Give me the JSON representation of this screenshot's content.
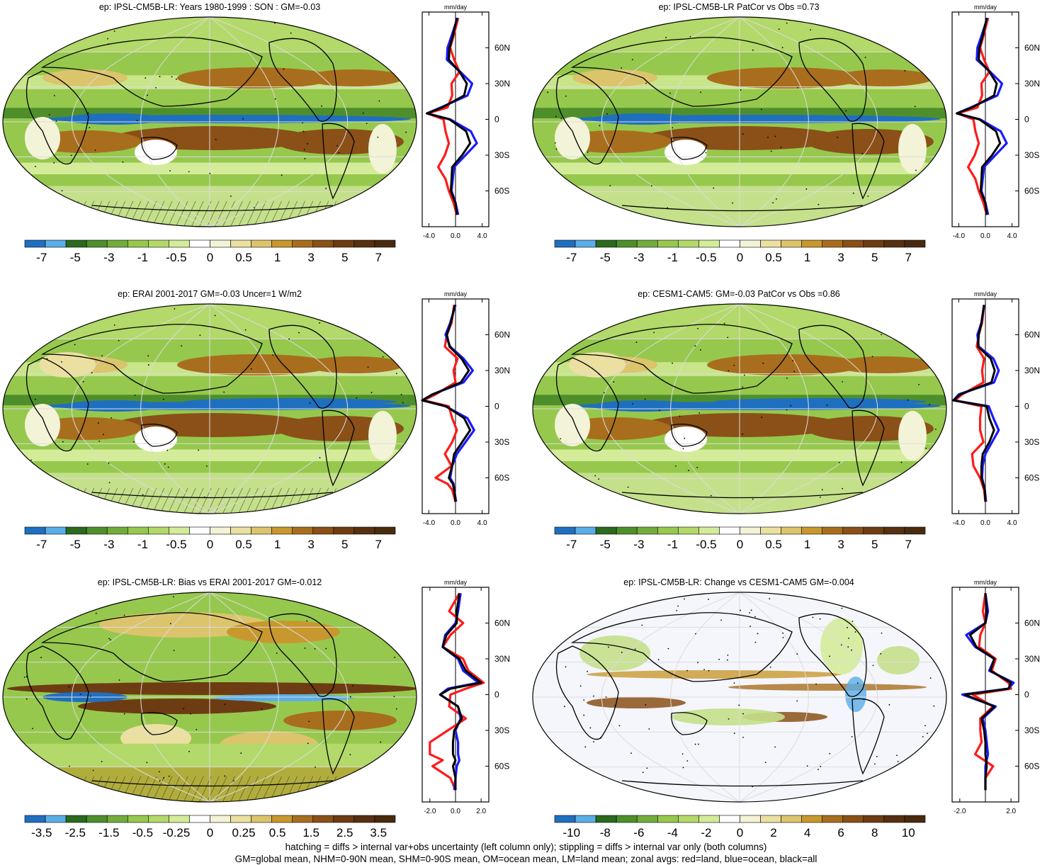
{
  "panels": [
    {
      "title": "ep: IPSL-CM5B-LR: Years 1980-1999 : SON : GM=-0.03",
      "style": "clim",
      "hatch": true,
      "cb": "clim",
      "zonal_ticks": [
        "-4.0",
        "0.0",
        "4.0"
      ]
    },
    {
      "title": "ep: IPSL-CM5B-LR PatCor vs Obs =0.73",
      "style": "clim",
      "hatch": false,
      "cb": "clim",
      "zonal_ticks": [
        "-4.0",
        "0.0",
        "4.0"
      ]
    },
    {
      "title": "ep: ERAI 2001-2017 GM=-0.03 Uncer=1 W/m2",
      "style": "clim2",
      "hatch": true,
      "cb": "clim",
      "zonal_ticks": [
        "-4.0",
        "0.0",
        "4.0"
      ]
    },
    {
      "title": "ep: CESM1-CAM5: GM=-0.03 PatCor vs Obs =0.86",
      "style": "clim2",
      "hatch": false,
      "cb": "clim",
      "zonal_ticks": [
        "-4.0",
        "0.0",
        "4.0"
      ]
    },
    {
      "title": "ep: IPSL-CM5B-LR: Bias vs ERAI 2001-2017  GM=-0.012",
      "style": "bias",
      "hatch": true,
      "cb": "bias",
      "zonal_ticks": [
        "-2.0",
        "0.0",
        "2.0"
      ]
    },
    {
      "title": "ep: IPSL-CM5B-LR: Change vs CESM1-CAM5 GM=-0.004",
      "style": "change",
      "hatch": false,
      "cb": "change",
      "zonal_ticks": [
        "-2.0",
        "2.0"
      ]
    }
  ],
  "zonal_unit": "mm/day",
  "lat_labels": [
    "60N",
    "30N",
    "0",
    "30S",
    "60S"
  ],
  "colorbars": {
    "clim": {
      "colors": [
        "#1f6fc0",
        "#5aaee8",
        "#2a6a1e",
        "#4e8f2c",
        "#72ad3c",
        "#96c84e",
        "#b3d96a",
        "#d4ec9a",
        "#ffffff",
        "#f3f3d8",
        "#ebe0a0",
        "#dcc46c",
        "#c8982e",
        "#a86e1e",
        "#8a5018",
        "#6e3c12",
        "#563010",
        "#4a2a0e"
      ],
      "labels": [
        "-7",
        "-5",
        "-3",
        "-1",
        "-0.5",
        "0",
        "0.5",
        "1",
        "3",
        "5",
        "7"
      ]
    },
    "bias": {
      "colors": [
        "#1f6fc0",
        "#5aaee8",
        "#2a6a1e",
        "#4e8f2c",
        "#72ad3c",
        "#96c84e",
        "#b3d96a",
        "#d4ec9a",
        "#ffffff",
        "#f3f3d8",
        "#ebe0a0",
        "#dcc46c",
        "#c8982e",
        "#a86e1e",
        "#8a5018",
        "#6e3c12",
        "#563010",
        "#4a2a0e"
      ],
      "labels": [
        "-3.5",
        "-2.5",
        "-1.5",
        "-0.5",
        "-0.25",
        "0",
        "0.25",
        "0.5",
        "1.5",
        "2.5",
        "3.5"
      ]
    },
    "change": {
      "colors": [
        "#1f6fc0",
        "#5aaee8",
        "#2a6a1e",
        "#4e8f2c",
        "#72ad3c",
        "#96c84e",
        "#b3d96a",
        "#d4ec9a",
        "#ffffff",
        "#f3f3d8",
        "#ebe0a0",
        "#dcc46c",
        "#c8982e",
        "#a86e1e",
        "#8a5018",
        "#6e3c12",
        "#563010",
        "#4a2a0e"
      ],
      "labels": [
        "-10",
        "-8",
        "-6",
        "-4",
        "-2",
        "0",
        "2",
        "4",
        "6",
        "8",
        "10"
      ]
    }
  },
  "legend_colors": {
    "land": "#ff1a1a",
    "ocean": "#1a1aff",
    "all": "#000000"
  },
  "footer": {
    "line1": "hatching = diffs > internal var+obs uncertainty (left column only); stippling = diffs > internal var only (both columns)",
    "line2": "GM=global mean, NHM=0-90N mean, SHM=0-90S mean, OM=ocean mean, LM=land mean; zonal avgs: red=land, blue=ocean, black=all"
  },
  "chart_data": [
    {
      "type": "heatmap",
      "title": "ep: IPSL-CM5B-LR: Years 1980-1999 : SON : GM=-0.03",
      "colorbar_labels": [
        "-7",
        "-5",
        "-3",
        "-1",
        "-0.5",
        "0",
        "0.5",
        "1",
        "3",
        "5",
        "7"
      ],
      "zonal_mean": {
        "unit": "mm/day",
        "xlim": [
          -5,
          5
        ],
        "lat": [
          85,
          70,
          60,
          50,
          40,
          30,
          20,
          10,
          5,
          0,
          -10,
          -20,
          -30,
          -40,
          -50,
          -60,
          -70,
          -80
        ],
        "series": [
          {
            "name": "land",
            "values": [
              0.4,
              -0.3,
              -0.8,
              -0.2,
              0.6,
              -0.6,
              -0.5,
              -1.2,
              -4.2,
              -1.8,
              -1.5,
              -1.0,
              -1.6,
              -2.6,
              -1.5,
              -1.0,
              -0.3,
              0.2
            ]
          },
          {
            "name": "ocean",
            "values": [
              0.3,
              -0.6,
              -1.2,
              -1.3,
              0.7,
              2.5,
              1.8,
              -2.2,
              -4.3,
              -0.8,
              2.3,
              3.2,
              1.5,
              -0.2,
              -0.4,
              -0.6,
              0.0,
              0.4
            ]
          },
          {
            "name": "all",
            "values": [
              0.2,
              -0.4,
              -0.9,
              -1.0,
              0.6,
              1.7,
              1.3,
              -2.0,
              -4.3,
              -0.9,
              1.6,
              2.2,
              1.0,
              -0.5,
              -0.6,
              -0.7,
              0.0,
              0.2
            ]
          }
        ]
      }
    },
    {
      "type": "heatmap",
      "title": "ep: IPSL-CM5B-LR PatCor vs Obs =0.73",
      "colorbar_labels": [
        "-7",
        "-5",
        "-3",
        "-1",
        "-0.5",
        "0",
        "0.5",
        "1",
        "3",
        "5",
        "7"
      ],
      "zonal_mean": {
        "unit": "mm/day",
        "xlim": [
          -5,
          5
        ],
        "lat": [
          85,
          70,
          60,
          50,
          40,
          30,
          20,
          10,
          5,
          0,
          -10,
          -20,
          -30,
          -40,
          -50,
          -60,
          -70,
          -80
        ],
        "series": [
          {
            "name": "land",
            "values": [
              0.4,
              -0.3,
              -0.8,
              -0.2,
              0.6,
              -0.6,
              -0.5,
              -1.2,
              -4.2,
              -1.8,
              -1.5,
              -1.0,
              -1.6,
              -2.6,
              -1.5,
              -1.0,
              -0.3,
              0.2
            ]
          },
          {
            "name": "ocean",
            "values": [
              0.3,
              -0.6,
              -1.2,
              -1.3,
              0.7,
              2.5,
              1.8,
              -2.2,
              -4.3,
              -0.8,
              2.3,
              3.2,
              1.5,
              -0.2,
              -0.4,
              -0.6,
              0.0,
              0.4
            ]
          },
          {
            "name": "all",
            "values": [
              0.2,
              -0.4,
              -0.9,
              -1.0,
              0.6,
              1.7,
              1.3,
              -2.0,
              -4.3,
              -0.9,
              1.6,
              2.2,
              1.0,
              -0.5,
              -0.6,
              -0.7,
              0.0,
              0.2
            ]
          }
        ]
      }
    },
    {
      "type": "heatmap",
      "title": "ep: ERAI 2001-2017 GM=-0.03 Uncer=1 W/m2",
      "colorbar_labels": [
        "-7",
        "-5",
        "-3",
        "-1",
        "-0.5",
        "0",
        "0.5",
        "1",
        "3",
        "5",
        "7"
      ],
      "zonal_mean": {
        "unit": "mm/day",
        "xlim": [
          -5,
          5
        ],
        "lat": [
          85,
          70,
          60,
          50,
          40,
          30,
          20,
          10,
          5,
          0,
          -10,
          -20,
          -30,
          -40,
          -50,
          -60,
          -65,
          -70,
          -80
        ],
        "series": [
          {
            "name": "land",
            "values": [
              -0.2,
              -0.6,
              -1.3,
              -1.6,
              0.3,
              -0.3,
              0.0,
              -3.0,
              -4.8,
              -1.0,
              -0.5,
              0.2,
              -0.5,
              -1.6,
              -0.6,
              -3.0,
              -1.2,
              -0.5,
              0.0
            ]
          },
          {
            "name": "ocean",
            "values": [
              0.0,
              -0.8,
              -1.5,
              -0.8,
              1.2,
              2.6,
              1.2,
              -3.5,
              -5.0,
              -1.5,
              1.8,
              2.8,
              1.5,
              0.2,
              -0.5,
              -0.8,
              -0.3,
              -0.2,
              0.1
            ]
          },
          {
            "name": "all",
            "values": [
              -0.1,
              -0.7,
              -1.3,
              -0.9,
              0.9,
              2.0,
              0.8,
              -3.4,
              -5.0,
              -1.4,
              1.3,
              2.2,
              1.0,
              -0.2,
              -0.5,
              -1.0,
              -0.4,
              -0.2,
              0.0
            ]
          }
        ]
      }
    },
    {
      "type": "heatmap",
      "title": "ep: CESM1-CAM5: GM=-0.03 PatCor vs Obs =0.86",
      "colorbar_labels": [
        "-7",
        "-5",
        "-3",
        "-1",
        "-0.5",
        "0",
        "0.5",
        "1",
        "3",
        "5",
        "7"
      ],
      "zonal_mean": {
        "unit": "mm/day",
        "xlim": [
          -5,
          5
        ],
        "lat": [
          85,
          70,
          60,
          50,
          40,
          30,
          20,
          10,
          5,
          0,
          -10,
          -20,
          -30,
          -40,
          -50,
          -60,
          -70,
          -80
        ],
        "series": [
          {
            "name": "land",
            "values": [
              -0.2,
              -0.5,
              -1.0,
              -1.3,
              -0.2,
              -0.5,
              -0.3,
              -3.5,
              -4.6,
              -0.6,
              -0.8,
              -0.8,
              -0.3,
              -2.0,
              -1.8,
              -0.8,
              -0.2,
              0.0
            ]
          },
          {
            "name": "ocean",
            "values": [
              -0.2,
              -0.6,
              -1.2,
              -1.0,
              1.2,
              2.0,
              1.3,
              -4.0,
              -4.8,
              0.5,
              1.2,
              2.0,
              1.0,
              0.0,
              -0.4,
              -0.5,
              -0.1,
              0.1
            ]
          },
          {
            "name": "all",
            "values": [
              -0.2,
              -0.6,
              -1.0,
              -1.1,
              0.8,
              1.4,
              0.9,
              -3.8,
              -4.8,
              0.2,
              0.6,
              1.3,
              0.6,
              -0.4,
              -0.6,
              -0.6,
              -0.1,
              0.0
            ]
          }
        ]
      }
    },
    {
      "type": "heatmap",
      "title": "ep: IPSL-CM5B-LR: Bias vs ERAI 2001-2017  GM=-0.012",
      "colorbar_labels": [
        "-3.5",
        "-2.5",
        "-1.5",
        "-0.5",
        "-0.25",
        "0",
        "0.25",
        "0.5",
        "1.5",
        "2.5",
        "3.5"
      ],
      "zonal_mean": {
        "unit": "mm/day",
        "xlim": [
          -2.6,
          2.6
        ],
        "lat": [
          85,
          70,
          60,
          50,
          40,
          30,
          20,
          10,
          5,
          0,
          -10,
          -20,
          -30,
          -40,
          -50,
          -55,
          -60,
          -70,
          -80
        ],
        "series": [
          {
            "name": "land",
            "values": [
              0.3,
              -0.5,
              0.6,
              -0.4,
              -1.0,
              0.6,
              1.0,
              2.2,
              0.8,
              -0.4,
              -0.5,
              0.8,
              -0.6,
              -2.0,
              -2.0,
              -1.0,
              -1.8,
              -0.4,
              0.0
            ]
          },
          {
            "name": "ocean",
            "values": [
              0.4,
              0.2,
              0.0,
              -0.8,
              -1.0,
              0.2,
              0.6,
              1.8,
              -0.6,
              -1.2,
              0.2,
              0.4,
              0.0,
              0.2,
              0.2,
              0.3,
              0.1,
              0.0,
              -0.1
            ]
          },
          {
            "name": "all",
            "values": [
              0.3,
              0.1,
              0.1,
              -0.7,
              -1.0,
              0.3,
              0.8,
              2.0,
              -0.4,
              -1.2,
              0.2,
              0.5,
              -0.1,
              -0.2,
              -0.2,
              0.0,
              -0.2,
              0.0,
              0.0
            ]
          }
        ]
      }
    },
    {
      "type": "heatmap",
      "title": "ep: IPSL-CM5B-LR: Change vs CESM1-CAM5 GM=-0.004",
      "colorbar_labels": [
        "-10",
        "-8",
        "-6",
        "-4",
        "-2",
        "0",
        "2",
        "4",
        "6",
        "8",
        "10"
      ],
      "zonal_mean": {
        "unit": "mm/day",
        "xlim": [
          -2.6,
          2.6
        ],
        "lat": [
          85,
          70,
          60,
          50,
          40,
          30,
          20,
          10,
          5,
          0,
          -10,
          -20,
          -30,
          -40,
          -50,
          -60,
          -70,
          -80
        ],
        "series": [
          {
            "name": "land",
            "values": [
              0.0,
              -0.2,
              0.0,
              -0.4,
              -0.5,
              0.8,
              0.5,
              1.8,
              2.0,
              -1.0,
              0.6,
              -0.4,
              -0.4,
              -0.3,
              -0.8,
              0.6,
              0.0,
              0.0
            ]
          },
          {
            "name": "ocean",
            "values": [
              0.0,
              0.2,
              0.0,
              -1.5,
              -0.8,
              0.7,
              0.3,
              2.2,
              1.8,
              -1.8,
              0.8,
              -0.2,
              0.0,
              0.1,
              0.2,
              0.0,
              0.0,
              0.0
            ]
          },
          {
            "name": "all",
            "values": [
              0.0,
              0.1,
              0.0,
              -1.2,
              -0.7,
              0.7,
              0.4,
              2.0,
              1.8,
              -1.6,
              0.7,
              -0.3,
              -0.1,
              0.0,
              0.0,
              0.1,
              0.0,
              0.0
            ]
          }
        ]
      }
    }
  ]
}
